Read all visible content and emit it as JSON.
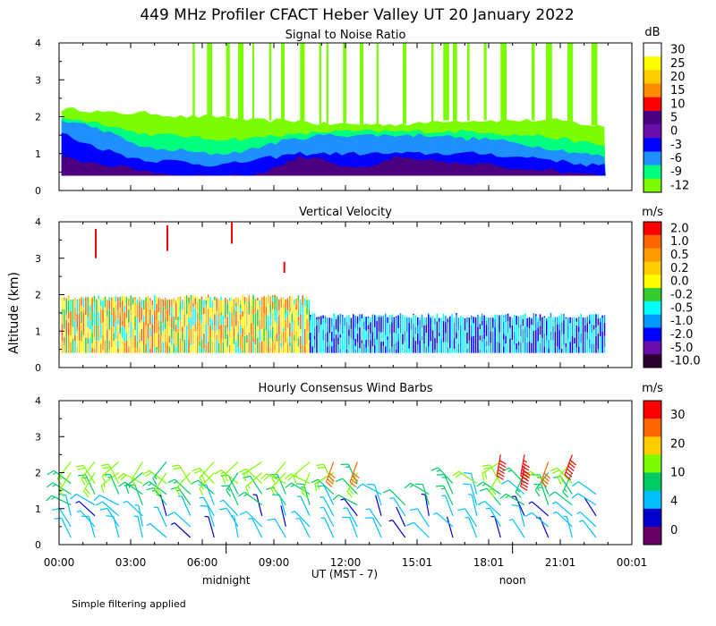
{
  "title": "449 MHz Profiler CFACT Heber Valley UT 20 January 2022",
  "ylabel": "Altitude (km)",
  "xlabel": "UT  (MST - 7)",
  "x_ticks": [
    "00:00",
    "03:00",
    "06:00",
    "09:00",
    "12:00",
    "15:01",
    "18:01",
    "21:01",
    "00:01"
  ],
  "x_tick_hours": [
    0,
    3,
    6,
    9,
    12,
    15,
    18,
    21,
    24
  ],
  "time_annotations": [
    {
      "label": "midnight",
      "hour": 7
    },
    {
      "label": "noon",
      "hour": 19
    }
  ],
  "footnote": "Simple filtering applied",
  "chart_data": [
    {
      "type": "heatmap",
      "title": "Signal to Noise Ratio",
      "ylabel": "Altitude (km)",
      "xlim": [
        0,
        24
      ],
      "ylim": [
        0,
        4
      ],
      "y_ticks": [
        "0",
        "1",
        "2",
        "3",
        "4"
      ],
      "colorbar_unit": "dB",
      "colorbar": {
        "labels": [
          "30",
          "25",
          "20",
          "15",
          "10",
          "5",
          "0",
          "-3",
          "-6",
          "-9",
          "-12"
        ],
        "colors": [
          "#ffffff",
          "#ffff00",
          "#ffcc00",
          "#ff8c00",
          "#ff0000",
          "#4b0082",
          "#6a0dad",
          "#0000ff",
          "#1e90ff",
          "#00ff7f",
          "#7cfc00"
        ]
      },
      "data_extent": {
        "start_hour": 0.1,
        "end_hour": 22.9,
        "min_alt_km": 0.4
      },
      "layers": [
        {
          "value_db": -12,
          "color": "#7cfc00",
          "top_km": [
            2.2,
            2.2,
            2.1,
            2.1,
            2.1,
            2.0,
            2.0,
            2.0,
            1.9,
            1.9,
            1.9,
            1.8,
            1.8,
            1.8,
            1.8,
            1.8,
            1.9,
            1.9,
            1.9,
            1.9,
            1.9,
            1.9,
            1.8,
            1.7
          ]
        },
        {
          "value_db": -9,
          "color": "#00ff7f",
          "top_km": [
            2.0,
            1.9,
            1.8,
            1.6,
            1.5,
            1.5,
            1.4,
            1.4,
            1.4,
            1.5,
            1.5,
            1.6,
            1.6,
            1.6,
            1.6,
            1.6,
            1.6,
            1.6,
            1.6,
            1.5,
            1.5,
            1.4,
            1.3,
            1.2
          ]
        },
        {
          "value_db": -6,
          "color": "#1e90ff",
          "top_km": [
            1.9,
            1.8,
            1.6,
            1.3,
            1.1,
            1.1,
            1.0,
            1.0,
            1.1,
            1.3,
            1.4,
            1.5,
            1.5,
            1.5,
            1.5,
            1.5,
            1.5,
            1.4,
            1.4,
            1.3,
            1.2,
            1.1,
            1.0,
            0.9
          ]
        },
        {
          "value_db": -3,
          "color": "#0000ff",
          "top_km": [
            1.6,
            1.3,
            1.1,
            0.9,
            0.8,
            0.8,
            0.7,
            0.7,
            0.8,
            0.9,
            1.0,
            1.0,
            1.0,
            1.0,
            1.0,
            1.0,
            1.0,
            1.0,
            1.0,
            0.9,
            0.9,
            0.8,
            0.7,
            0.7
          ]
        },
        {
          "value_db": 0,
          "color": "#4b0082",
          "top_km": [
            0.9,
            0.8,
            0.7,
            0.6,
            0.5,
            0.4,
            0.4,
            0.4,
            0.4,
            0.6,
            0.9,
            0.9,
            0.6,
            0.6,
            0.9,
            0.8,
            0.8,
            0.7,
            0.7,
            0.6,
            0.6,
            0.5,
            0.5,
            0.4
          ]
        }
      ],
      "elevated_returns": {
        "color": "#7cfc00",
        "hours": [
          5.6,
          6.2,
          7.0,
          7.5,
          8.1,
          8.8,
          9.3,
          10.1,
          10.9,
          11.2,
          11.9,
          12.6,
          13.3,
          14.4,
          15.6,
          16.1,
          16.5,
          17.1,
          17.8,
          18.5,
          19.8,
          20.4,
          21.3,
          22.3
        ],
        "top_km": 4.0
      }
    },
    {
      "type": "heatmap",
      "title": "Vertical Velocity",
      "ylabel": "Altitude (km)",
      "xlim": [
        0,
        24
      ],
      "ylim": [
        0,
        4
      ],
      "y_ticks": [
        "0",
        "1",
        "2",
        "3",
        "4"
      ],
      "colorbar_unit": "m/s",
      "colorbar": {
        "labels": [
          "2.0",
          "1.0",
          "0.5",
          "0.2",
          "0.0",
          "-0.2",
          "-0.5",
          "-1.0",
          "-2.0",
          "-5.0",
          "-10.0"
        ],
        "colors": [
          "#ff0000",
          "#ff6600",
          "#ff9900",
          "#ffcc00",
          "#ffff00",
          "#33cc33",
          "#00ffff",
          "#0099ff",
          "#0000ff",
          "#6a0dad",
          "#2b0033"
        ]
      },
      "regions": [
        {
          "hour_range": [
            0.1,
            10.5
          ],
          "alt_range_km": [
            0.4,
            2.0
          ],
          "character": "mixed",
          "dominant_values_ms": [
            -0.5,
            -0.2,
            0.0,
            0.2,
            0.5,
            1.0
          ]
        },
        {
          "hour_range": [
            10.5,
            22.9
          ],
          "alt_range_km": [
            0.4,
            1.5
          ],
          "character": "downward",
          "dominant_values_ms": [
            -2.0,
            -1.0,
            -0.5
          ]
        }
      ],
      "updraft_streaks": [
        {
          "hour": 1.5,
          "alt_range_km": [
            3.0,
            3.8
          ],
          "value_ms": 2.0
        },
        {
          "hour": 4.5,
          "alt_range_km": [
            3.2,
            3.9
          ],
          "value_ms": 2.0
        },
        {
          "hour": 7.2,
          "alt_range_km": [
            3.4,
            4.0
          ],
          "value_ms": 2.0
        },
        {
          "hour": 9.4,
          "alt_range_km": [
            2.6,
            2.9
          ],
          "value_ms": 2.0
        }
      ]
    },
    {
      "type": "wind_barbs",
      "title": "Hourly Consensus Wind Barbs",
      "ylabel": "Altitude (km)",
      "xlim": [
        0,
        24
      ],
      "ylim": [
        0,
        4
      ],
      "y_ticks": [
        "0",
        "1",
        "2",
        "3",
        "4"
      ],
      "colorbar_unit": "m/s",
      "colorbar": {
        "labels": [
          "30",
          "20",
          "10",
          "4",
          "0"
        ],
        "colors": [
          "#ff0000",
          "#ff6600",
          "#ffcc00",
          "#7cfc00",
          "#00cc66",
          "#00bfff",
          "#0000cd",
          "#660066"
        ]
      },
      "altitudes_km": [
        0.2,
        0.5,
        0.8,
        1.1,
        1.4,
        1.7,
        2.0,
        2.3
      ],
      "hours": [
        0.5,
        1.5,
        2.5,
        3.5,
        4.5,
        5.5,
        6.5,
        7.5,
        8.5,
        9.5,
        10.5,
        11.5,
        12.5,
        13.5,
        14.5,
        15.5,
        16.5,
        17.5,
        18.5,
        19.5,
        20.5,
        21.5,
        22.5
      ],
      "top_km_by_hour": [
        2.3,
        2.3,
        2.3,
        2.3,
        2.3,
        2.0,
        2.3,
        2.3,
        2.3,
        2.3,
        2.3,
        2.3,
        2.3,
        1.4,
        1.1,
        1.4,
        1.7,
        1.7,
        2.3,
        2.3,
        2.3,
        2.3,
        1.4
      ],
      "strong_barbs": [
        {
          "hour": 11.5,
          "alt_km": 2.3,
          "speed_ms": 22,
          "dir_deg": 200
        },
        {
          "hour": 12.5,
          "alt_km": 2.3,
          "speed_ms": 20,
          "dir_deg": 200
        },
        {
          "hour": 18.5,
          "alt_km": 2.5,
          "speed_ms": 30,
          "dir_deg": 190
        },
        {
          "hour": 19.5,
          "alt_km": 2.5,
          "speed_ms": 28,
          "dir_deg": 190
        },
        {
          "hour": 19.5,
          "alt_km": 2.2,
          "speed_ms": 30,
          "dir_deg": 190
        },
        {
          "hour": 20.5,
          "alt_km": 2.3,
          "speed_ms": 22,
          "dir_deg": 200
        },
        {
          "hour": 21.5,
          "alt_km": 2.5,
          "speed_ms": 32,
          "dir_deg": 200
        }
      ]
    }
  ]
}
